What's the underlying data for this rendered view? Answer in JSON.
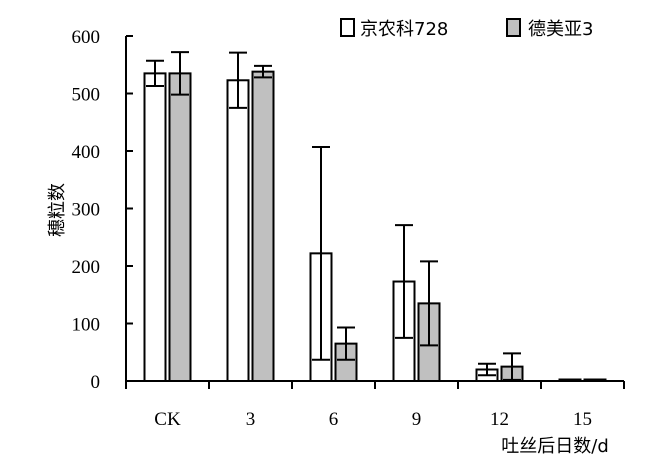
{
  "chart_data": {
    "type": "bar",
    "categories": [
      "CK",
      "3",
      "6",
      "9",
      "12",
      "15"
    ],
    "series": [
      {
        "name": "京农科728",
        "color": "#ffffff",
        "values": [
          535,
          523,
          222,
          173,
          20,
          2
        ],
        "error": [
          22,
          48,
          185,
          98,
          10,
          0
        ]
      },
      {
        "name": "德美亚3",
        "color": "#c0c0c0",
        "values": [
          535,
          538,
          65,
          135,
          25,
          2
        ],
        "error": [
          37,
          10,
          28,
          73,
          23,
          0
        ]
      }
    ],
    "ylabel": "穗粒数",
    "xlabel": "吐丝后日数/d",
    "ylim": [
      0,
      600
    ],
    "yticks": [
      "0",
      "100",
      "200",
      "300",
      "400",
      "500",
      "600"
    ],
    "legend": "top-right",
    "grid": false
  }
}
